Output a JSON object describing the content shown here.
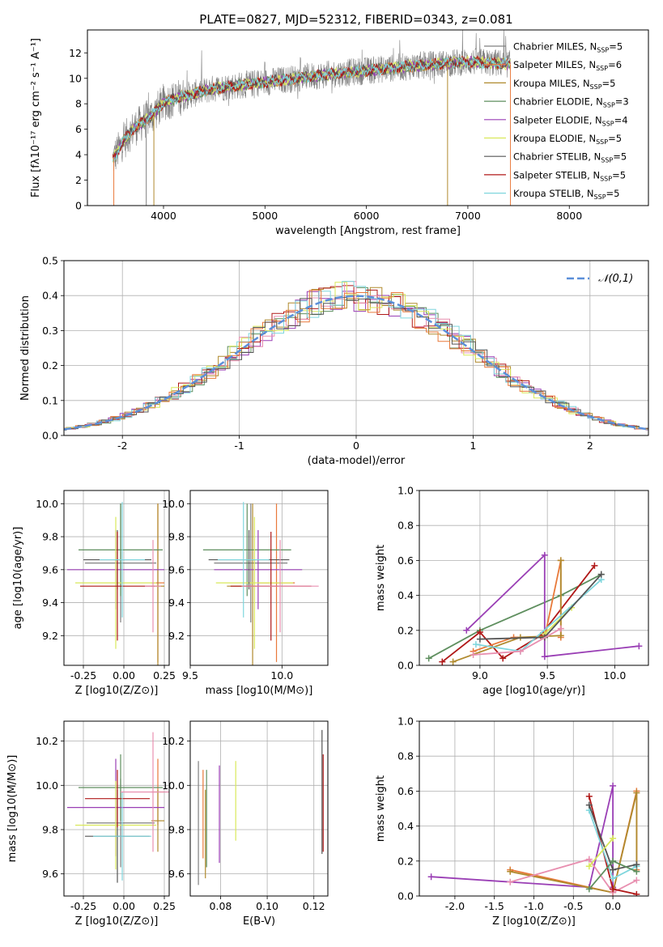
{
  "title": "PLATE=0827, MJD=52312, FIBERID=0343, z=0.081",
  "colors": [
    "#808080",
    "#e8793a",
    "#b08a2e",
    "#5f8f5f",
    "#9a3fb5",
    "#d9e85a",
    "#555555",
    "#b01818",
    "#7fd6dd",
    "#e88fb0"
  ],
  "chart_data": [
    {
      "id": "spectrum",
      "type": "line",
      "xlabel": "wavelength [Angstrom, rest frame]",
      "ylabel": "Flux [fλ10⁻¹⁷ erg cm⁻² s⁻¹ A⁻¹]",
      "xlim": [
        3250,
        8780
      ],
      "ylim": [
        0,
        13.8
      ],
      "xticks": [
        4000,
        5000,
        6000,
        7000,
        8000
      ],
      "yticks": [
        0,
        2,
        4,
        6,
        8,
        10,
        12
      ],
      "continuum": {
        "x": [
          3500,
          3600,
          3700,
          3800,
          3900,
          4000,
          4200,
          4500,
          5000,
          5500,
          6000,
          6500,
          7000,
          7300,
          7420
        ],
        "y": [
          3.6,
          5.0,
          6.0,
          6.6,
          7.2,
          8.1,
          8.6,
          9.2,
          9.7,
          10.2,
          10.6,
          11.0,
          11.3,
          11.2,
          11.1
        ]
      },
      "legend": [
        {
          "label": "Chabrier MILES, N_SSP=5",
          "color": "#808080"
        },
        {
          "label": "Salpeter MILES, N_SSP=6",
          "color": "#e8793a"
        },
        {
          "label": "Kroupa MILES, N_SSP=5",
          "color": "#b08a2e"
        },
        {
          "label": "Chabrier ELODIE, N_SSP=3",
          "color": "#5f8f5f"
        },
        {
          "label": "Salpeter ELODIE, N_SSP=4",
          "color": "#9a3fb5"
        },
        {
          "label": "Kroupa ELODIE, N_SSP=5",
          "color": "#d9e85a"
        },
        {
          "label": "Chabrier STELIB, N_SSP=5",
          "color": "#555555"
        },
        {
          "label": "Salpeter STELIB, N_SSP=5",
          "color": "#b01818"
        },
        {
          "label": "Kroupa STELIB, N_SSP=5",
          "color": "#7fd6dd"
        }
      ]
    },
    {
      "id": "residuals",
      "type": "histogram",
      "xlabel": "(data-model)/error",
      "ylabel": "Normed distribution",
      "xlim": [
        -2.5,
        2.5
      ],
      "ylim": [
        0,
        0.5
      ],
      "xticks": [
        -2,
        -1,
        0,
        1,
        2
      ],
      "yticks": [
        0.0,
        0.1,
        0.2,
        0.3,
        0.4,
        0.5
      ],
      "bin_width": 0.1,
      "legend": "𝒩(0,1)",
      "gauss_color": "#5b8fd9"
    },
    {
      "id": "age_vs_Z",
      "type": "errorbar",
      "xlabel": "Z [log10(Z/Z⊙)]",
      "ylabel": "age  [log10(age/yr)]",
      "xlim": [
        -0.37,
        0.28
      ],
      "ylim": [
        9.02,
        10.08
      ],
      "xticks": [
        -0.25,
        0.0,
        0.25
      ],
      "yticks": [
        9.2,
        9.4,
        9.6,
        9.8,
        10.0
      ],
      "points": [
        {
          "x": -0.02,
          "y": 9.64,
          "xerr": 0.22,
          "yerr": 0.36
        },
        {
          "x": 0.21,
          "y": 9.52,
          "xerr": 0.04,
          "yerr": 0.48
        },
        {
          "x": 0.21,
          "y": 9.5,
          "xerr": 0.04,
          "yerr": 0.5
        },
        {
          "x": -0.02,
          "y": 9.72,
          "xerr": 0.26,
          "yerr": 0.28
        },
        {
          "x": -0.05,
          "y": 9.6,
          "xerr": 0.3,
          "yerr": 0.24
        },
        {
          "x": -0.05,
          "y": 9.52,
          "xerr": 0.25,
          "yerr": 0.4
        },
        {
          "x": -0.04,
          "y": 9.66,
          "xerr": 0.21,
          "yerr": 0.18
        },
        {
          "x": -0.04,
          "y": 9.5,
          "xerr": 0.23,
          "yerr": 0.33
        },
        {
          "x": -0.01,
          "y": 9.66,
          "xerr": 0.14,
          "yerr": 0.35
        },
        {
          "x": 0.18,
          "y": 9.5,
          "xerr": 0.05,
          "yerr": 0.28
        }
      ]
    },
    {
      "id": "age_vs_mass",
      "type": "errorbar",
      "xlabel": "mass [log10(M/M⊙)]",
      "ylabel": "",
      "xlim": [
        9.5,
        10.25
      ],
      "ylim": [
        9.02,
        10.08
      ],
      "xticks": [
        9.5,
        10.0
      ],
      "yticks": [
        9.2,
        9.4,
        9.6,
        9.8,
        10.0
      ],
      "points": [
        {
          "x": 9.83,
          "y": 9.64,
          "xerr": 0.2,
          "yerr": 0.36
        },
        {
          "x": 9.97,
          "y": 9.52,
          "xerr": 0.1,
          "yerr": 0.48
        },
        {
          "x": 9.84,
          "y": 9.5,
          "xerr": 0.14,
          "yerr": 0.5
        },
        {
          "x": 9.81,
          "y": 9.72,
          "xerr": 0.24,
          "yerr": 0.28
        },
        {
          "x": 9.87,
          "y": 9.6,
          "xerr": 0.24,
          "yerr": 0.24
        },
        {
          "x": 9.85,
          "y": 9.52,
          "xerr": 0.21,
          "yerr": 0.4
        },
        {
          "x": 9.82,
          "y": 9.66,
          "xerr": 0.22,
          "yerr": 0.18
        },
        {
          "x": 9.94,
          "y": 9.5,
          "xerr": 0.22,
          "yerr": 0.33
        },
        {
          "x": 9.79,
          "y": 9.66,
          "xerr": 0.14,
          "yerr": 0.35
        },
        {
          "x": 9.99,
          "y": 9.5,
          "xerr": 0.21,
          "yerr": 0.28
        }
      ]
    },
    {
      "id": "weight_vs_age",
      "type": "line",
      "xlabel": "age  [log10(age/yr)]",
      "ylabel": "mass weight",
      "xlim": [
        8.55,
        10.25
      ],
      "ylim": [
        0,
        1.0
      ],
      "xticks": [
        9.0,
        9.5,
        10.0
      ],
      "yticks": [
        0.0,
        0.2,
        0.4,
        0.6,
        0.8,
        1.0
      ],
      "series": [
        {
          "x": [
            8.62,
            9.0,
            9.6,
            9.9
          ],
          "y": [
            0.04,
            0.2,
            0.4,
            0.52
          ],
          "color": "#5f8f5f"
        },
        {
          "x": [
            8.9,
            9.48,
            9.48,
            10.18
          ],
          "y": [
            0.2,
            0.63,
            0.05,
            0.11
          ],
          "color": "#9a3fb5"
        },
        {
          "x": [
            8.72,
            9.0,
            9.17,
            9.45,
            9.85
          ],
          "y": [
            0.02,
            0.19,
            0.04,
            0.17,
            0.57
          ],
          "color": "#b01818"
        },
        {
          "x": [
            8.95,
            9.25,
            9.48,
            9.6,
            9.6
          ],
          "y": [
            0.08,
            0.16,
            0.16,
            0.6,
            0.16
          ],
          "color": "#e8793a"
        },
        {
          "x": [
            8.8,
            9.3,
            9.6,
            9.6
          ],
          "y": [
            0.02,
            0.16,
            0.17,
            0.6
          ],
          "color": "#b08a2e"
        },
        {
          "x": [
            9.48,
            9.68
          ],
          "y": [
            0.18,
            0.33
          ],
          "color": "#d9e85a"
        },
        {
          "x": [
            8.97,
            9.3,
            9.9
          ],
          "y": [
            0.12,
            0.08,
            0.49
          ],
          "color": "#7fd6dd"
        },
        {
          "x": [
            9.0,
            9.48,
            9.9
          ],
          "y": [
            0.15,
            0.16,
            0.52
          ],
          "color": "#555555"
        },
        {
          "x": [
            8.95,
            9.3,
            9.6
          ],
          "y": [
            0.06,
            0.08,
            0.21
          ],
          "color": "#e88fb0"
        }
      ]
    },
    {
      "id": "mass_vs_Z",
      "type": "errorbar",
      "xlabel": "Z [log10(Z/Z⊙)]",
      "ylabel": "mass [log10(M/M⊙)]",
      "xlim": [
        -0.37,
        0.28
      ],
      "ylim": [
        9.5,
        10.29
      ],
      "xticks": [
        -0.25,
        0.0,
        0.25
      ],
      "yticks": [
        9.6,
        9.8,
        10.0,
        10.2
      ],
      "points": [
        {
          "x": -0.02,
          "y": 9.83,
          "xerr": 0.21,
          "yerr": 0.2
        },
        {
          "x": 0.21,
          "y": 9.97,
          "xerr": 0.04,
          "yerr": 0.15
        },
        {
          "x": 0.21,
          "y": 9.84,
          "xerr": 0.04,
          "yerr": 0.14
        },
        {
          "x": -0.02,
          "y": 9.99,
          "xerr": 0.26,
          "yerr": 0.15
        },
        {
          "x": -0.05,
          "y": 9.9,
          "xerr": 0.3,
          "yerr": 0.22
        },
        {
          "x": -0.05,
          "y": 9.82,
          "xerr": 0.25,
          "yerr": 0.2
        },
        {
          "x": -0.04,
          "y": 9.77,
          "xerr": 0.2,
          "yerr": 0.21
        },
        {
          "x": -0.04,
          "y": 9.94,
          "xerr": 0.2,
          "yerr": 0.13
        },
        {
          "x": -0.01,
          "y": 9.77,
          "xerr": 0.18,
          "yerr": 0.2
        },
        {
          "x": 0.18,
          "y": 9.97,
          "xerr": 0.2,
          "yerr": 0.27
        }
      ]
    },
    {
      "id": "mass_vs_ebv",
      "type": "errorbar",
      "xlabel": "E(B-V)",
      "ylabel": "",
      "xlim": [
        0.067,
        0.126
      ],
      "ylim": [
        9.5,
        10.29
      ],
      "xticks": [
        0.08,
        0.1,
        0.12
      ],
      "yticks": [
        9.6,
        9.8,
        10.0,
        10.2
      ],
      "points": [
        {
          "x": 0.0705,
          "y": 9.83,
          "xerr": 0,
          "yerr": 0.28
        },
        {
          "x": 0.0725,
          "y": 9.87,
          "xerr": 0,
          "yerr": 0.2
        },
        {
          "x": 0.0735,
          "y": 9.78,
          "xerr": 0,
          "yerr": 0.2
        },
        {
          "x": 0.074,
          "y": 9.85,
          "xerr": 0,
          "yerr": 0.22
        },
        {
          "x": 0.0795,
          "y": 9.87,
          "xerr": 0,
          "yerr": 0.22
        },
        {
          "x": 0.0865,
          "y": 9.93,
          "xerr": 0,
          "yerr": 0.18
        },
        {
          "x": 0.1235,
          "y": 9.97,
          "xerr": 0,
          "yerr": 0.28
        },
        {
          "x": 0.124,
          "y": 9.92,
          "xerr": 0,
          "yerr": 0.22
        }
      ]
    },
    {
      "id": "weight_vs_Z",
      "type": "line",
      "xlabel": "Z [log10(Z/Z⊙)]",
      "ylabel": "mass weight",
      "xlim": [
        -2.45,
        0.45
      ],
      "ylim": [
        0,
        1.0
      ],
      "xticks": [
        -2.0,
        -1.5,
        -1.0,
        -0.5,
        0.0
      ],
      "yticks": [
        0.0,
        0.2,
        0.4,
        0.6,
        0.8,
        1.0
      ],
      "series": [
        {
          "x": [
            -2.3,
            -0.3,
            0.0,
            0.0
          ],
          "y": [
            0.11,
            0.05,
            0.63,
            0.05
          ],
          "color": "#9a3fb5"
        },
        {
          "x": [
            -1.3,
            0.0,
            0.3,
            0.3
          ],
          "y": [
            0.15,
            0.02,
            0.6,
            0.15
          ],
          "color": "#e8793a"
        },
        {
          "x": [
            -1.3,
            0.0,
            0.3,
            0.3
          ],
          "y": [
            0.14,
            0.02,
            0.59,
            0.17
          ],
          "color": "#b08a2e"
        },
        {
          "x": [
            -1.3,
            -0.3,
            0.0,
            0.3
          ],
          "y": [
            0.08,
            0.21,
            0.02,
            0.09
          ],
          "color": "#e88fb0"
        },
        {
          "x": [
            -0.3,
            0.0,
            0.3
          ],
          "y": [
            0.57,
            0.04,
            0.01
          ],
          "color": "#b01818"
        },
        {
          "x": [
            -0.3,
            0.0,
            0.3
          ],
          "y": [
            0.49,
            0.1,
            0.17
          ],
          "color": "#7fd6dd"
        },
        {
          "x": [
            -0.3,
            0.0,
            0.3
          ],
          "y": [
            0.52,
            0.15,
            0.18
          ],
          "color": "#555555"
        },
        {
          "x": [
            -0.3,
            0.0,
            0.3
          ],
          "y": [
            0.04,
            0.2,
            0.14
          ],
          "color": "#5f8f5f"
        },
        {
          "x": [
            -0.3,
            0.0
          ],
          "y": [
            0.17,
            0.33
          ],
          "color": "#d9e85a"
        }
      ]
    }
  ]
}
